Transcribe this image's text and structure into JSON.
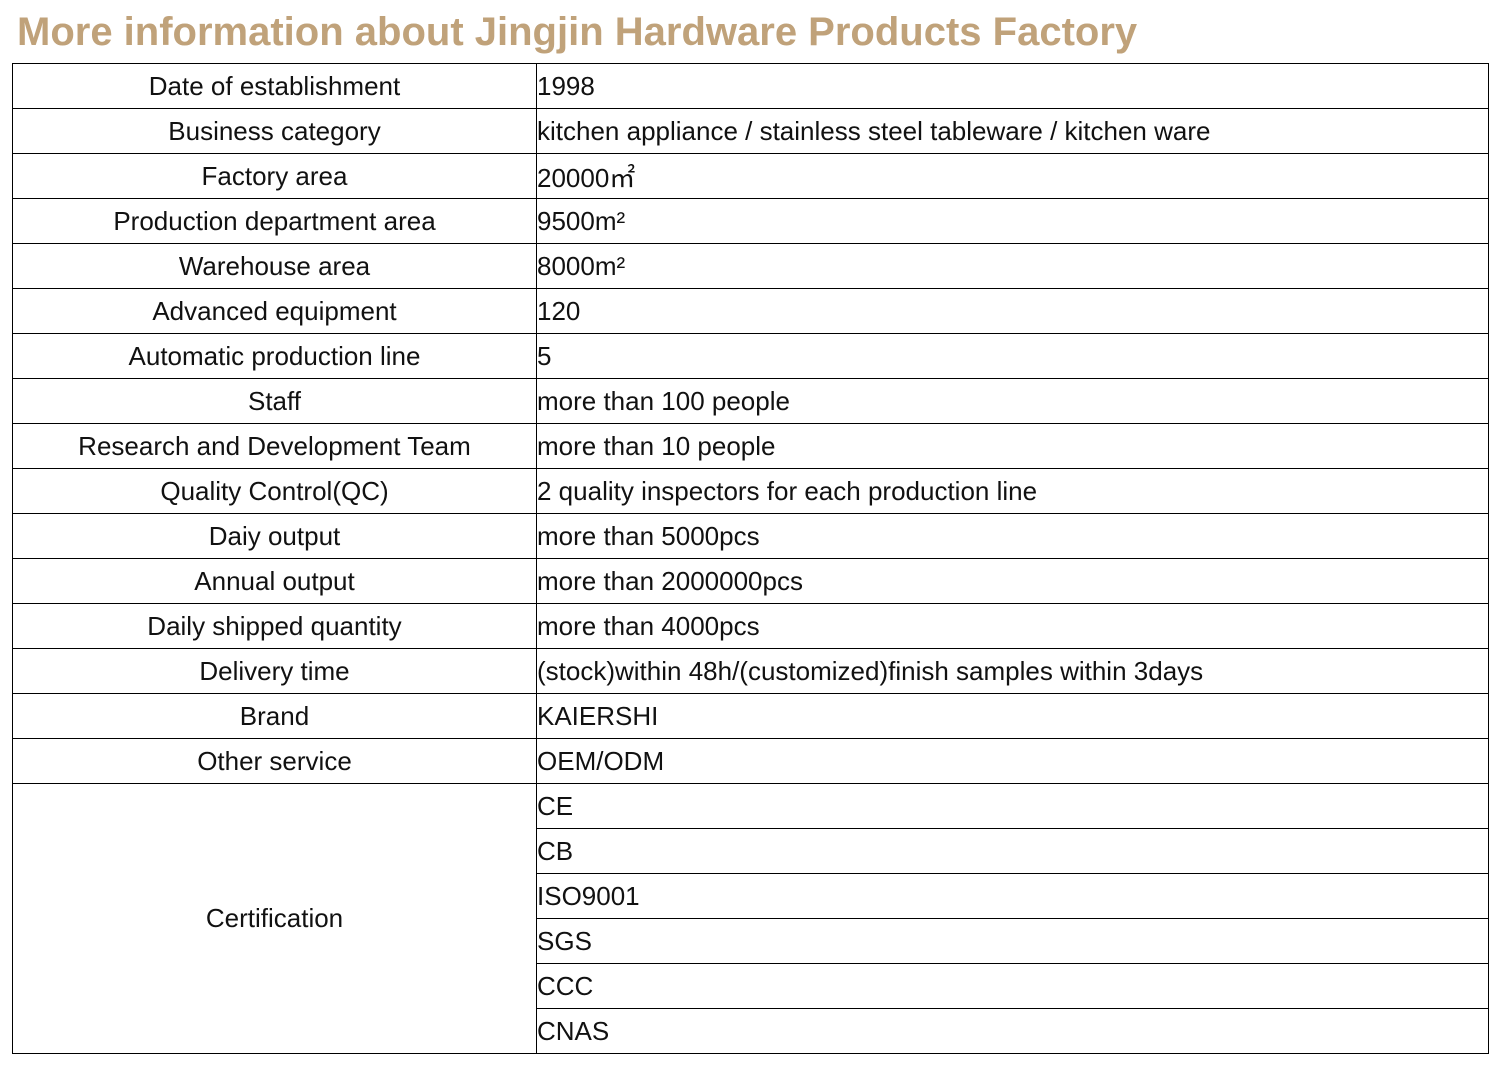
{
  "title": "More information about Jingjin Hardware Products Factory",
  "rows": [
    {
      "label": "Date of establishment",
      "value": "1998"
    },
    {
      "label": "Business category",
      "value": "kitchen appliance / stainless steel tableware / kitchen ware"
    },
    {
      "label": "Factory area",
      "value": "20000㎡"
    },
    {
      "label": "Production department area",
      "value": "9500m²"
    },
    {
      "label": "Warehouse area",
      "value": "8000m²"
    },
    {
      "label": "Advanced equipment",
      "value": "120"
    },
    {
      "label": "Automatic production line",
      "value": "5"
    },
    {
      "label": "Staff",
      "value": "more than 100 people"
    },
    {
      "label": "Research and Development Team",
      "value": "more than 10 people"
    },
    {
      "label": "Quality Control(QC)",
      "value": "2 quality inspectors for each production line"
    },
    {
      "label": "Daiy output",
      "value": "more than 5000pcs"
    },
    {
      "label": "Annual output",
      "value": "more than 2000000pcs"
    },
    {
      "label": "Daily shipped quantity",
      "value": "more than 4000pcs"
    },
    {
      "label": "Delivery time",
      "value": "(stock)within 48h/(customized)finish samples within 3days"
    },
    {
      "label": "Brand",
      "value": "KAIERSHI"
    },
    {
      "label": "Other service",
      "value": "OEM/ODM"
    }
  ],
  "certification": {
    "label": "Certification",
    "items": [
      "CE",
      "CB",
      "ISO9001",
      "SGS",
      "CCC",
      "CNAS"
    ]
  },
  "colors": {
    "title": "#c0a27a",
    "border": "#000000",
    "text": "#111111"
  }
}
